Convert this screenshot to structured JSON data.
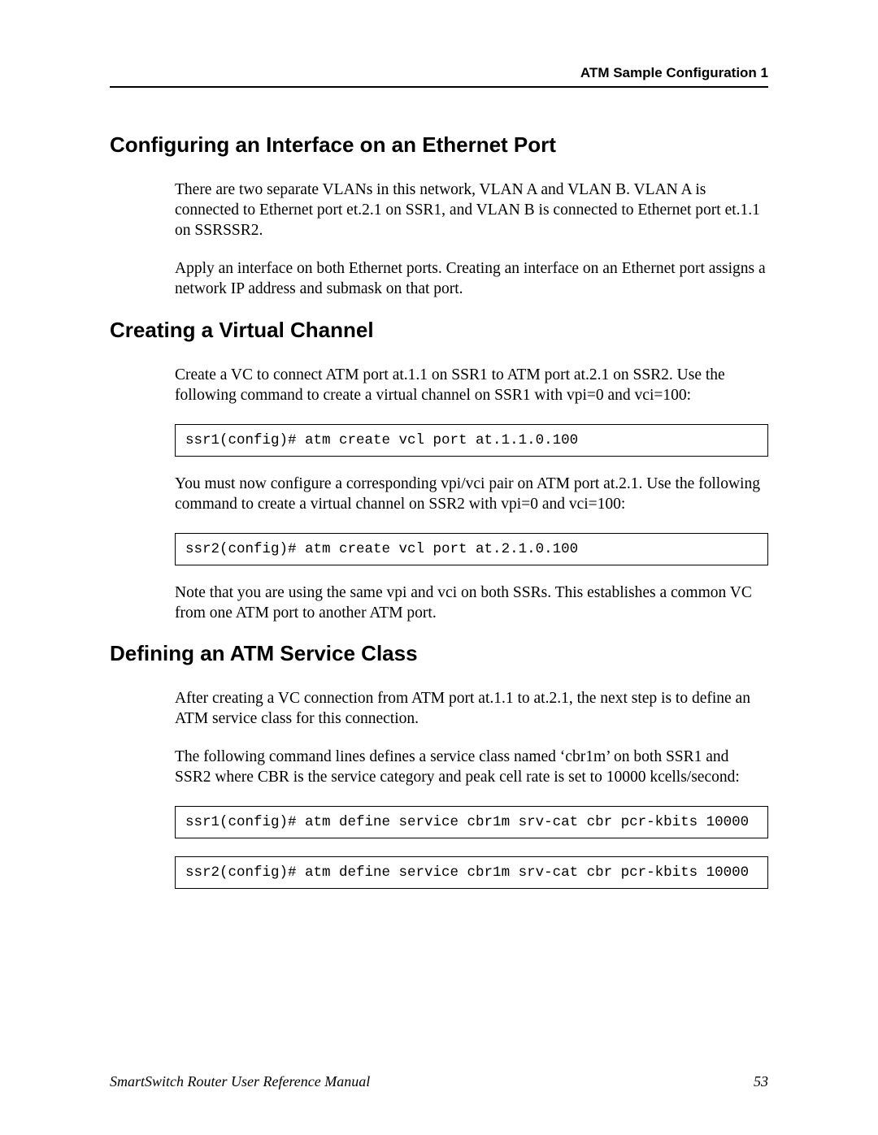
{
  "header": {
    "running_head": "ATM Sample Configuration 1"
  },
  "sections": {
    "s1": {
      "title": "Configuring an Interface on an Ethernet Port",
      "p1": "There are two separate VLANs in this network, VLAN A and VLAN B. VLAN A is connected to Ethernet port et.2.1 on SSR1, and VLAN B is connected to Ethernet port et.1.1 on SSRSSR2.",
      "p2": "Apply an interface on both Ethernet ports. Creating an interface on an Ethernet port assigns a network IP address and submask on that port."
    },
    "s2": {
      "title": "Creating a Virtual Channel",
      "p1": "Create a VC to connect ATM port at.1.1 on SSR1 to ATM port at.2.1 on SSR2. Use the following command to create a virtual channel on SSR1 with vpi=0 and vci=100:",
      "code1": "ssr1(config)# atm create vcl port at.1.1.0.100",
      "p2": "You must now configure a corresponding vpi/vci pair on ATM port at.2.1.  Use the following command to create a virtual channel on SSR2 with vpi=0 and vci=100:",
      "code2": "ssr2(config)# atm create vcl port at.2.1.0.100",
      "p3": "Note that you are using the same vpi and vci on both SSRs. This establishes a common VC from one ATM port to another ATM port."
    },
    "s3": {
      "title": "Defining an ATM Service Class",
      "p1": "After creating a VC connection from ATM port at.1.1 to at.2.1, the next step is to define an ATM service class for this connection.",
      "p2": "The following command lines defines a service class named ‘cbr1m’ on both SSR1 and SSR2 where CBR is the service category and peak cell rate is set to 10000 kcells/second:",
      "code1": "ssr1(config)# atm define service cbr1m srv-cat cbr pcr-kbits 10000",
      "code2": "ssr2(config)# atm define service cbr1m srv-cat cbr pcr-kbits 10000"
    }
  },
  "footer": {
    "manual_title": "SmartSwitch Router User Reference Manual",
    "page_number": "53"
  }
}
